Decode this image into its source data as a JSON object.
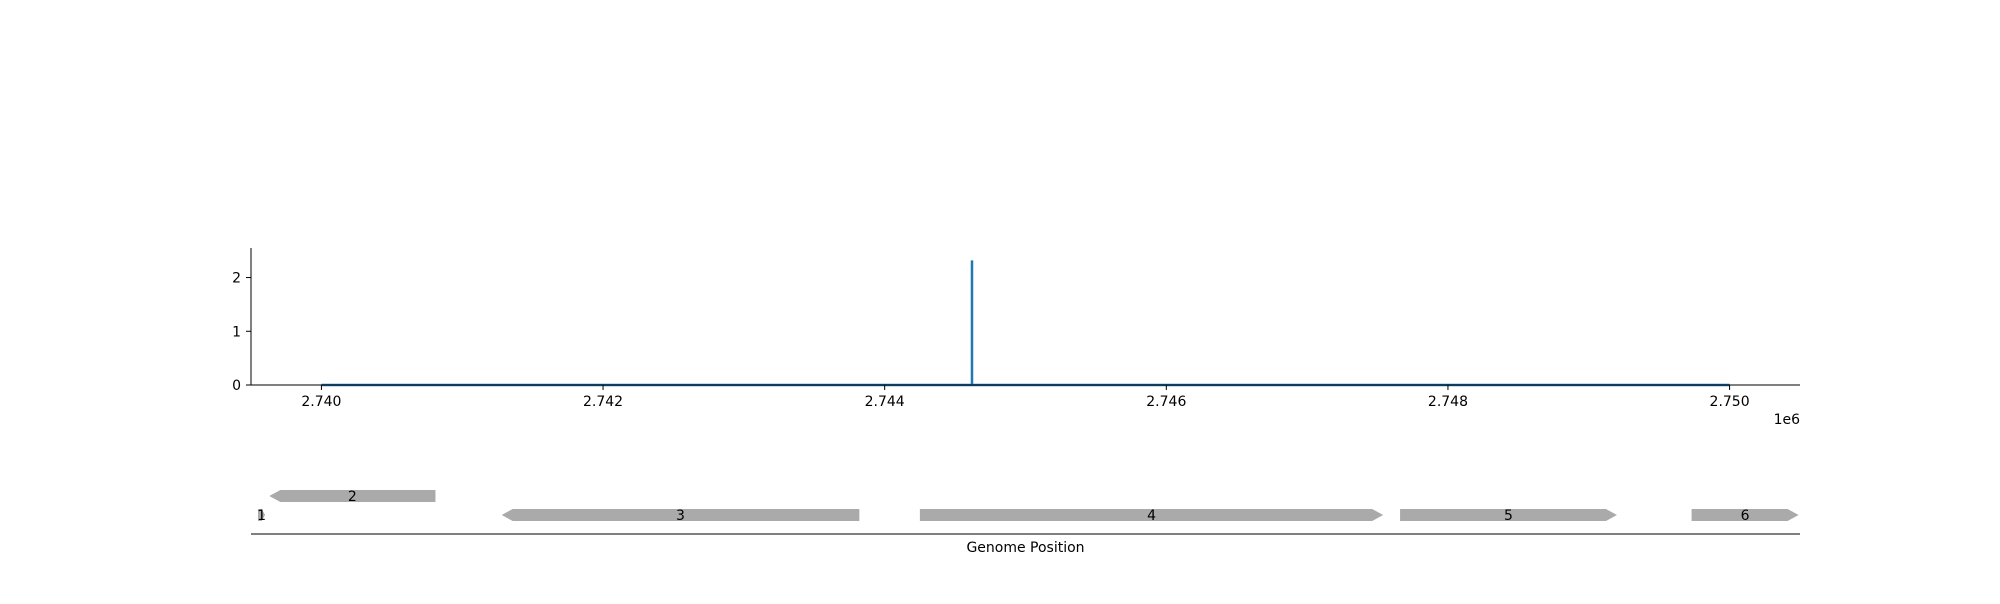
{
  "chart_data": [
    {
      "type": "line",
      "title": "",
      "xlabel": "",
      "ylabel": "",
      "x_offset_label": "1e6",
      "xlim": [
        2739500,
        2750500
      ],
      "ylim": [
        0,
        2.55
      ],
      "x_ticks": [
        2740000,
        2742000,
        2744000,
        2746000,
        2748000,
        2750000
      ],
      "x_tick_labels": [
        "2.740",
        "2.742",
        "2.744",
        "2.746",
        "2.748",
        "2.750"
      ],
      "y_ticks": [
        0,
        1,
        2
      ],
      "y_tick_labels": [
        "0",
        "1",
        "2"
      ],
      "grid": false,
      "legend": "none",
      "color": "#1f77b4",
      "series": [
        {
          "x": [
            2740000,
            2744620,
            2744620,
            2744620,
            2744620,
            2750000
          ],
          "y": [
            0,
            0,
            2.32,
            2.32,
            0,
            0
          ]
        }
      ]
    },
    {
      "type": "gene-track",
      "xlabel": "Genome Position",
      "xlim": [
        2739500,
        2750500
      ],
      "color": "#aaaaaa",
      "genes": [
        {
          "label": "1",
          "start": 2739550,
          "end": 2739600,
          "strand": "+",
          "row": 0
        },
        {
          "label": "2",
          "start": 2739630,
          "end": 2740810,
          "strand": "-",
          "row": 1
        },
        {
          "label": "3",
          "start": 2741280,
          "end": 2743820,
          "strand": "-",
          "row": 0
        },
        {
          "label": "4",
          "start": 2744250,
          "end": 2747540,
          "strand": "+",
          "row": 0
        },
        {
          "label": "5",
          "start": 2747660,
          "end": 2749200,
          "strand": "+",
          "row": 0
        },
        {
          "label": "6",
          "start": 2749730,
          "end": 2750490,
          "strand": "+",
          "row": 0
        }
      ]
    }
  ]
}
